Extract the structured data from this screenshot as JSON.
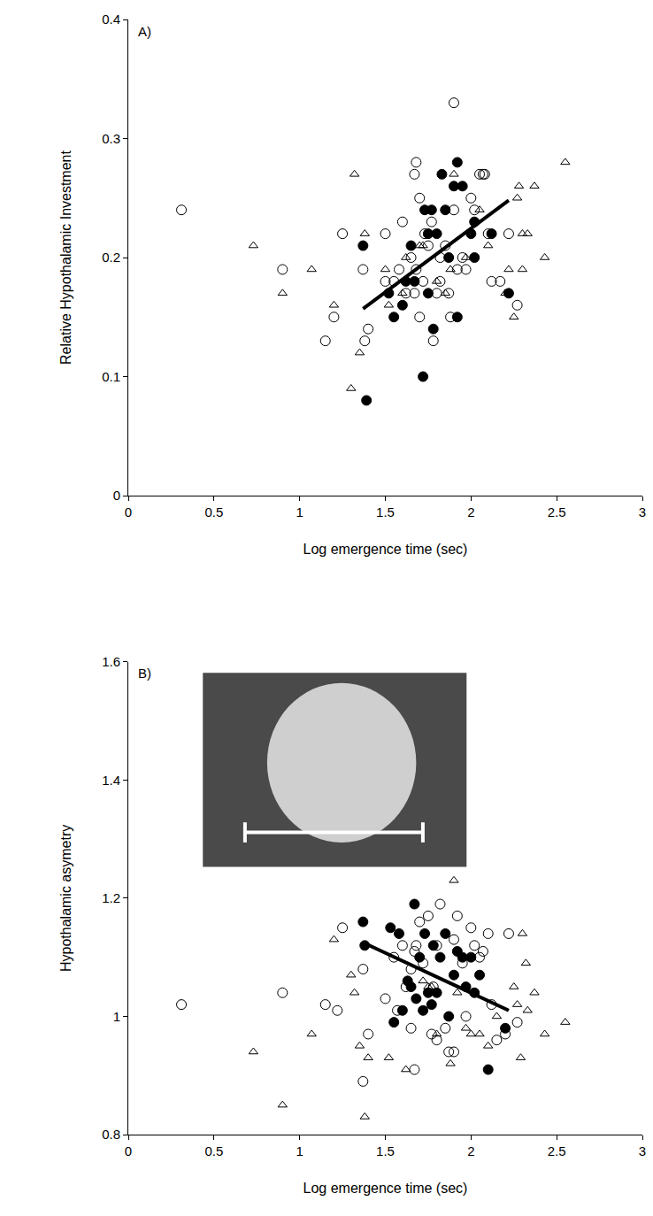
{
  "chart_data": [
    {
      "type": "scatter",
      "annotation": "A)",
      "x_label": "Log emergence time (sec)",
      "y_label": "Relative Hypothalamic Investment",
      "xlim": [
        0,
        3
      ],
      "xticks": [
        0,
        0.5,
        1,
        1.5,
        2,
        2.5,
        3
      ],
      "ylim": [
        0,
        0.4
      ],
      "yticks": [
        0,
        0.1,
        0.2,
        0.3,
        0.4
      ],
      "series": [
        {
          "type": "scatter",
          "marker": "circle-open",
          "color": "#000000",
          "x": [
            0.31,
            0.9,
            1.15,
            1.2,
            1.25,
            1.37,
            1.38,
            1.4,
            1.5,
            1.5,
            1.55,
            1.58,
            1.6,
            1.62,
            1.65,
            1.67,
            1.67,
            1.68,
            1.7,
            1.7,
            1.72,
            1.73,
            1.75,
            1.77,
            1.78,
            1.8,
            1.82,
            1.85,
            1.87,
            1.88,
            1.9,
            1.9,
            1.92,
            1.95,
            1.97,
            2.0,
            2.02,
            2.05,
            2.07,
            2.08,
            2.1,
            2.12,
            2.17,
            2.22,
            2.27,
            1.68,
            1.82
          ],
          "values": [
            0.24,
            0.19,
            0.13,
            0.15,
            0.22,
            0.19,
            0.13,
            0.14,
            0.22,
            0.18,
            0.18,
            0.19,
            0.23,
            0.17,
            0.2,
            0.17,
            0.27,
            0.28,
            0.25,
            0.15,
            0.18,
            0.22,
            0.21,
            0.23,
            0.13,
            0.17,
            0.2,
            0.21,
            0.17,
            0.15,
            0.33,
            0.24,
            0.19,
            0.2,
            0.19,
            0.25,
            0.24,
            0.27,
            0.27,
            0.27,
            0.22,
            0.18,
            0.18,
            0.22,
            0.16,
            0.19,
            0.18
          ]
        },
        {
          "type": "scatter",
          "marker": "circle",
          "color": "#000000",
          "x": [
            1.37,
            1.39,
            1.52,
            1.55,
            1.6,
            1.62,
            1.65,
            1.67,
            1.72,
            1.73,
            1.75,
            1.75,
            1.77,
            1.78,
            1.8,
            1.83,
            1.85,
            1.87,
            1.9,
            1.92,
            1.92,
            1.95,
            2.0,
            2.02,
            2.02,
            2.12,
            2.22
          ],
          "values": [
            0.21,
            0.08,
            0.17,
            0.15,
            0.16,
            0.18,
            0.21,
            0.18,
            0.1,
            0.24,
            0.17,
            0.22,
            0.24,
            0.14,
            0.22,
            0.27,
            0.24,
            0.2,
            0.26,
            0.28,
            0.15,
            0.26,
            0.22,
            0.2,
            0.23,
            0.22,
            0.17
          ]
        },
        {
          "type": "scatter",
          "marker": "triangle-up-open",
          "color": "#000000",
          "x": [
            0.73,
            0.9,
            1.07,
            1.2,
            1.3,
            1.32,
            1.35,
            1.38,
            1.5,
            1.52,
            1.6,
            1.62,
            1.7,
            1.72,
            1.75,
            1.8,
            1.85,
            1.88,
            1.9,
            1.95,
            1.97,
            2.05,
            2.1,
            2.2,
            2.22,
            2.27,
            2.28,
            2.3,
            2.3,
            2.33,
            2.37,
            2.25,
            2.43,
            2.55
          ],
          "values": [
            0.21,
            0.17,
            0.19,
            0.16,
            0.09,
            0.27,
            0.12,
            0.22,
            0.19,
            0.16,
            0.17,
            0.2,
            0.21,
            0.21,
            0.22,
            0.18,
            0.17,
            0.19,
            0.27,
            0.26,
            0.2,
            0.24,
            0.21,
            0.17,
            0.19,
            0.25,
            0.26,
            0.22,
            0.19,
            0.22,
            0.26,
            0.15,
            0.2,
            0.28
          ]
        },
        {
          "type": "line",
          "line_style": "solid",
          "color": "#000000",
          "x": [
            1.37,
            2.22
          ],
          "values": [
            0.157,
            0.248
          ]
        }
      ]
    },
    {
      "type": "scatter",
      "annotation": "B)",
      "x_label": "Log emergence time (sec)",
      "y_label": "Hypothalamic asymetry",
      "xlim": [
        0,
        3
      ],
      "xticks": [
        0,
        0.5,
        1,
        1.5,
        2,
        2.5,
        3
      ],
      "ylim": [
        0.8,
        1.6
      ],
      "yticks": [
        0.8,
        1,
        1.2,
        1.4,
        1.6
      ],
      "series": [
        {
          "type": "scatter",
          "marker": "circle-open",
          "color": "#000000",
          "x": [
            0.31,
            0.9,
            1.15,
            1.22,
            1.25,
            1.37,
            1.37,
            1.4,
            1.5,
            1.55,
            1.57,
            1.6,
            1.62,
            1.65,
            1.67,
            1.67,
            1.68,
            1.7,
            1.72,
            1.75,
            1.77,
            1.78,
            1.8,
            1.82,
            1.85,
            1.87,
            1.9,
            1.9,
            1.92,
            1.95,
            1.97,
            2.0,
            2.02,
            2.05,
            2.07,
            2.1,
            2.12,
            2.15,
            2.2,
            2.22,
            2.27,
            1.65,
            1.8
          ],
          "values": [
            1.02,
            1.04,
            1.02,
            1.01,
            1.15,
            0.89,
            1.08,
            0.97,
            1.03,
            1.1,
            1.01,
            1.12,
            1.05,
            0.98,
            0.91,
            1.11,
            1.12,
            1.16,
            1.09,
            1.17,
            0.97,
            1.05,
            0.96,
            1.19,
            0.98,
            0.94,
            0.94,
            1.13,
            1.17,
            1.09,
            1.0,
            1.15,
            1.12,
            1.1,
            1.11,
            1.14,
            1.02,
            0.96,
            0.97,
            1.14,
            0.99,
            1.08,
            1.12
          ]
        },
        {
          "type": "scatter",
          "marker": "circle",
          "color": "#000000",
          "x": [
            1.37,
            1.38,
            1.53,
            1.55,
            1.58,
            1.6,
            1.63,
            1.65,
            1.67,
            1.68,
            1.7,
            1.72,
            1.73,
            1.75,
            1.77,
            1.8,
            1.82,
            1.85,
            1.87,
            1.9,
            1.92,
            1.95,
            1.97,
            2.0,
            2.02,
            2.05,
            2.1,
            2.2,
            1.78
          ],
          "values": [
            1.16,
            1.12,
            1.15,
            0.99,
            1.14,
            1.01,
            1.06,
            1.05,
            1.19,
            1.03,
            1.1,
            1.01,
            1.14,
            1.04,
            1.02,
            1.04,
            1.1,
            1.14,
            1.0,
            1.07,
            1.11,
            1.1,
            1.05,
            1.1,
            1.04,
            1.07,
            0.91,
            0.98,
            1.12
          ]
        },
        {
          "type": "scatter",
          "marker": "triangle-up-open",
          "color": "#000000",
          "x": [
            0.73,
            0.9,
            1.07,
            1.2,
            1.3,
            1.32,
            1.35,
            1.38,
            1.4,
            1.52,
            1.62,
            1.72,
            1.75,
            1.8,
            1.88,
            1.9,
            1.92,
            1.97,
            2.0,
            2.05,
            2.1,
            2.15,
            2.25,
            2.27,
            2.3,
            2.32,
            2.33,
            2.37,
            2.29,
            2.43,
            2.55,
            1.77
          ],
          "values": [
            0.94,
            0.85,
            0.97,
            1.13,
            1.07,
            1.04,
            0.95,
            0.83,
            0.93,
            0.93,
            0.91,
            1.06,
            1.05,
            0.97,
            0.92,
            1.23,
            1.04,
            0.98,
            0.97,
            0.97,
            0.95,
            1.0,
            1.05,
            1.02,
            1.14,
            1.09,
            1.01,
            1.04,
            0.93,
            0.97,
            0.99,
            1.05
          ]
        },
        {
          "type": "line",
          "line_style": "solid",
          "color": "#000000",
          "x": [
            1.37,
            2.22
          ],
          "values": [
            1.125,
            1.01
          ]
        }
      ]
    }
  ]
}
